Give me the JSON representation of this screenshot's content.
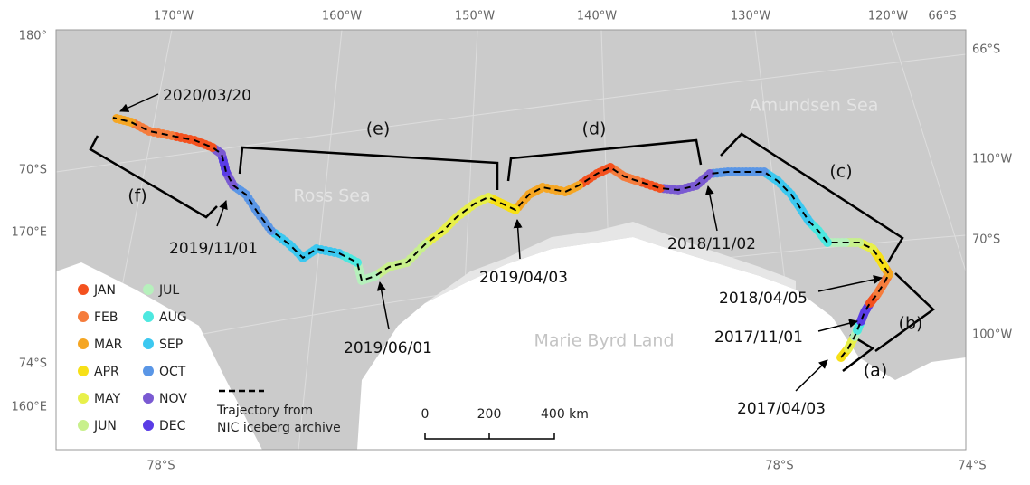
{
  "axis_labels": {
    "top": [
      "170°W",
      "160°W",
      "150°W",
      "140°W",
      "130°W",
      "120°W",
      "66°S"
    ],
    "left": [
      "180°",
      "70°S",
      "170°E",
      "74°S",
      "160°E"
    ],
    "right": [
      "66°S",
      "110°W",
      "70°S",
      "100°W"
    ],
    "bottom": [
      "78°S",
      "78°S",
      "74°S"
    ]
  },
  "places": [
    "Amundsen Sea",
    "Ross Sea",
    "Marie Byrd Land"
  ],
  "dates": [
    "2020/03/20",
    "2019/11/01",
    "2019/06/01",
    "2019/04/03",
    "2018/11/02",
    "2018/04/05",
    "2017/11/01",
    "2017/04/03"
  ],
  "segments": [
    "(a)",
    "(b)",
    "(c)",
    "(d)",
    "(e)",
    "(f)"
  ],
  "legend": {
    "months": [
      {
        "name": "JAN",
        "color": "#f4511e"
      },
      {
        "name": "FEB",
        "color": "#f57c3c"
      },
      {
        "name": "MAR",
        "color": "#f5a623"
      },
      {
        "name": "APR",
        "color": "#f7e017"
      },
      {
        "name": "MAY",
        "color": "#e8f04a"
      },
      {
        "name": "JUN",
        "color": "#c8f08c"
      },
      {
        "name": "JUL",
        "color": "#b6f0bc"
      },
      {
        "name": "AUG",
        "color": "#4de8e0"
      },
      {
        "name": "SEP",
        "color": "#3cc8f0"
      },
      {
        "name": "OCT",
        "color": "#5a96e6"
      },
      {
        "name": "NOV",
        "color": "#7a5ad2"
      },
      {
        "name": "DEC",
        "color": "#5a3ce6"
      }
    ],
    "trajectory": [
      "Trajectory from",
      "NIC iceberg archive"
    ]
  },
  "scale_bar": {
    "labels": [
      "0",
      "200",
      "400 km"
    ]
  }
}
